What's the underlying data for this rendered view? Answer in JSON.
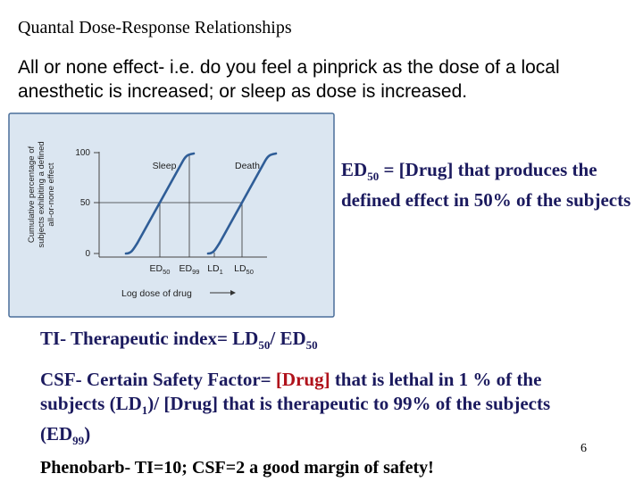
{
  "slide": {
    "title": "Quantal Dose-Response Relationships",
    "intro": "All or none effect- i.e. do you feel a pinprick as the dose of a local anesthetic is increased; or sleep as dose is increased.",
    "page_number": "6"
  },
  "ed50_definition": {
    "term": "ED",
    "term_sub": "50",
    "rest": " = [Drug] that produces the defined effect in 50% of the subjects"
  },
  "ti": {
    "prefix": "TI- Therapeutic index= LD",
    "sub1": "50",
    "mid": "/ ED",
    "sub2": "50"
  },
  "csf": {
    "prefix": "CSF- Certain Safety Factor= ",
    "lethal_drug": "[Drug]",
    "lethal_text": " that is lethal in 1 % of the subjects (LD",
    "lethal_sub": "1",
    "lethal_end": ")/ ",
    "thera_drug": "[Drug]",
    "thera_text": " that is therapeutic to 99% of the subjects (ED",
    "thera_sub": "99",
    "thera_end": ")"
  },
  "phenobarb": "Phenobarb-  TI=10;  CSF=2  a good margin of safety!",
  "figure": {
    "panel_color": "#dbe6f1",
    "border_color": "#4a6e9a",
    "curve_color": "#2f5d97",
    "ylabel_line1": "Cumulative percentage of",
    "ylabel_line2": "subjects exhibiting a defined",
    "ylabel_line3": "all-or-none effect",
    "y_ticks": [
      "100",
      "50",
      "0"
    ],
    "curve1_label": "Sleep",
    "curve2_label": "Death",
    "x_markers": [
      {
        "base": "ED",
        "sub": "50"
      },
      {
        "base": "ED",
        "sub": "99"
      },
      {
        "base": "LD",
        "sub": "1"
      },
      {
        "base": "LD",
        "sub": "50"
      }
    ],
    "xlabel": "Log dose of drug"
  }
}
